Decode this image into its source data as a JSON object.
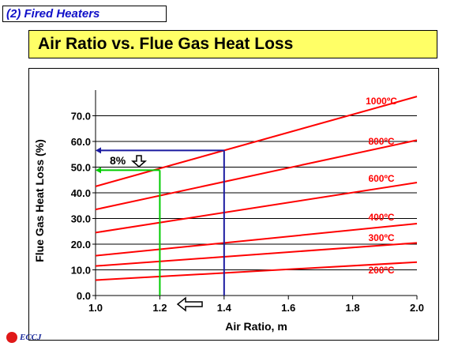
{
  "header": {
    "section": "(2) Fired Heaters",
    "title": "Air Ratio vs. Flue Gas Heat Loss"
  },
  "logo": {
    "text": "ECCJ",
    "icon": "eccj-logo"
  },
  "chart_data": {
    "type": "line",
    "xlabel": "Air Ratio, m",
    "ylabel": "Flue Gas Heat Loss (%)",
    "xlim": [
      1.0,
      2.0
    ],
    "ylim": [
      0,
      80
    ],
    "x_ticks": [
      "1.0",
      "1.2",
      "1.4",
      "1.6",
      "1.8",
      "2.0"
    ],
    "y_ticks": [
      "0.0",
      "10.0",
      "20.0",
      "30.0",
      "40.0",
      "50.0",
      "60.0",
      "70.0"
    ],
    "grid": "horizontal",
    "x": [
      1.0,
      2.0
    ],
    "series": [
      {
        "name": "1000ºC",
        "values": [
          42.5,
          77.5
        ],
        "color": "#ff0000"
      },
      {
        "name": "800ºC",
        "values": [
          33.5,
          60.5
        ],
        "color": "#ff0000"
      },
      {
        "name": "600ºC",
        "values": [
          24.5,
          44.0
        ],
        "color": "#ff0000"
      },
      {
        "name": "400ºC",
        "values": [
          15.5,
          28.0
        ],
        "color": "#ff0000"
      },
      {
        "name": "300ºC",
        "values": [
          11.5,
          20.5
        ],
        "color": "#ff0000"
      },
      {
        "name": "200ºC",
        "values": [
          6.0,
          13.0
        ],
        "color": "#ff0000"
      }
    ],
    "annotations": {
      "reduction_label": "8%",
      "line_1": {
        "x": 1.4,
        "y": 56.5,
        "color": "#1a1aa0"
      },
      "line_2": {
        "x": 1.2,
        "y": 48.8,
        "color": "#00cc00"
      },
      "colors": {
        "arrow_fill": "#ffffff",
        "arrow_stroke": "#000000"
      }
    }
  }
}
